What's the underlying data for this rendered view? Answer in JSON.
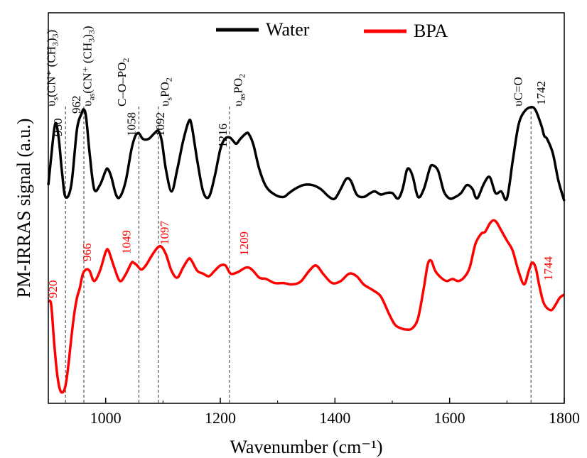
{
  "chart_data": {
    "type": "line",
    "title": "",
    "xlabel": "Wavenumber (cm⁻¹)",
    "ylabel": "PM-IRRAS signal (a.u.)",
    "xlim": [
      900,
      1800
    ],
    "x_ticks": [
      "1000",
      "1200",
      "1400",
      "1600",
      "1800"
    ],
    "x_tick_values": [
      1000,
      1200,
      1400,
      1600,
      1800
    ],
    "y_ticks": [],
    "grid": false,
    "legend_position": "top-center",
    "series": [
      {
        "name": "Water",
        "color": "#000000",
        "offset": "upper",
        "x": [
          900,
          905,
          912,
          918,
          924,
          930,
          940,
          950,
          958,
          962,
          966,
          972,
          980,
          990,
          1000,
          1004,
          1010,
          1018,
          1025,
          1035,
          1045,
          1052,
          1058,
          1065,
          1075,
          1085,
          1092,
          1098,
          1105,
          1115,
          1125,
          1135,
          1145,
          1150,
          1160,
          1170,
          1180,
          1190,
          1200,
          1208,
          1216,
          1222,
          1228,
          1235,
          1245,
          1250,
          1258,
          1268,
          1280,
          1295,
          1310,
          1320,
          1330,
          1345,
          1360,
          1375,
          1390,
          1400,
          1410,
          1420,
          1428,
          1438,
          1450,
          1462,
          1470,
          1480,
          1490,
          1500,
          1510,
          1518,
          1525,
          1530,
          1536,
          1545,
          1555,
          1565,
          1570,
          1580,
          1590,
          1600,
          1610,
          1620,
          1630,
          1640,
          1645,
          1650,
          1660,
          1670,
          1680,
          1690,
          1700,
          1710,
          1720,
          1730,
          1742,
          1750,
          1760,
          1765,
          1770,
          1780,
          1790,
          1800
        ],
        "y": [
          0.2,
          0.55,
          0.97,
          0.8,
          0.35,
          0.05,
          0.2,
          0.9,
          1.1,
          1.15,
          1.05,
          0.6,
          0.15,
          0.2,
          0.38,
          0.4,
          0.3,
          0.08,
          0.05,
          0.25,
          0.65,
          0.82,
          0.85,
          0.78,
          0.78,
          0.85,
          0.88,
          0.75,
          0.4,
          0.12,
          0.4,
          0.75,
          1.0,
          0.95,
          0.5,
          0.12,
          0.05,
          0.3,
          0.65,
          0.78,
          0.8,
          0.76,
          0.72,
          0.78,
          0.85,
          0.84,
          0.7,
          0.4,
          0.18,
          0.08,
          0.05,
          0.1,
          0.15,
          0.2,
          0.2,
          0.15,
          0.05,
          0.03,
          0.15,
          0.28,
          0.25,
          0.08,
          0.05,
          0.1,
          0.12,
          0.08,
          0.1,
          0.1,
          0.03,
          0.15,
          0.38,
          0.4,
          0.3,
          0.05,
          0.15,
          0.4,
          0.45,
          0.38,
          0.12,
          0.03,
          0.05,
          0.1,
          0.2,
          0.15,
          0.05,
          0.05,
          0.22,
          0.3,
          0.1,
          0.12,
          0.03,
          0.5,
          0.95,
          1.12,
          1.18,
          1.14,
          0.95,
          0.82,
          0.78,
          0.6,
          0.25,
          0.0
        ]
      },
      {
        "name": "BPA",
        "color": "#ff0000",
        "offset": "lower",
        "x": [
          900,
          905,
          910,
          915,
          920,
          925,
          930,
          935,
          940,
          945,
          950,
          955,
          960,
          966,
          972,
          980,
          990,
          1000,
          1005,
          1015,
          1025,
          1035,
          1045,
          1049,
          1055,
          1062,
          1070,
          1080,
          1090,
          1097,
          1105,
          1115,
          1125,
          1135,
          1145,
          1150,
          1160,
          1170,
          1180,
          1190,
          1200,
          1209,
          1218,
          1230,
          1245,
          1255,
          1268,
          1280,
          1295,
          1310,
          1325,
          1340,
          1355,
          1367,
          1380,
          1395,
          1410,
          1425,
          1438,
          1450,
          1465,
          1480,
          1495,
          1505,
          1515,
          1525,
          1535,
          1545,
          1555,
          1562,
          1568,
          1575,
          1585,
          1595,
          1605,
          1615,
          1625,
          1635,
          1645,
          1655,
          1662,
          1670,
          1676,
          1682,
          1690,
          1700,
          1710,
          1720,
          1730,
          1738,
          1744,
          1750,
          1756,
          1763,
          1770,
          1778,
          1785,
          1792,
          1800
        ],
        "y": [
          -0.15,
          -0.2,
          -0.75,
          -1.2,
          -1.45,
          -1.5,
          -1.4,
          -1.1,
          -0.7,
          -0.35,
          -0.1,
          0.05,
          0.25,
          0.32,
          0.3,
          0.15,
          0.3,
          0.58,
          0.6,
          0.35,
          0.15,
          0.25,
          0.42,
          0.42,
          0.38,
          0.32,
          0.38,
          0.52,
          0.64,
          0.66,
          0.55,
          0.3,
          0.2,
          0.35,
          0.48,
          0.45,
          0.3,
          0.26,
          0.22,
          0.3,
          0.38,
          0.38,
          0.26,
          0.28,
          0.35,
          0.32,
          0.2,
          0.18,
          0.12,
          0.12,
          0.1,
          0.14,
          0.3,
          0.38,
          0.25,
          0.12,
          0.15,
          0.26,
          0.22,
          0.1,
          0.02,
          -0.08,
          -0.35,
          -0.5,
          -0.55,
          -0.57,
          -0.55,
          -0.4,
          0.05,
          0.4,
          0.45,
          0.3,
          0.2,
          0.15,
          0.18,
          0.15,
          0.2,
          0.35,
          0.7,
          0.85,
          0.88,
          1.0,
          1.05,
          1.02,
          0.9,
          0.75,
          0.6,
          0.3,
          0.1,
          0.3,
          0.42,
          0.35,
          0.1,
          -0.15,
          -0.25,
          -0.28,
          -0.2,
          -0.1,
          -0.05
        ]
      }
    ],
    "reference_lines": [
      {
        "x": 930,
        "top_label": "930",
        "bottom_label": "920"
      },
      {
        "x": 962,
        "top_label": "962",
        "bottom_label": "966"
      },
      {
        "x": 1058,
        "top_label": "1058",
        "bottom_label": "1049"
      },
      {
        "x": 1092,
        "top_label": "1092",
        "bottom_label": "1097"
      },
      {
        "x": 1216,
        "top_label": "1216",
        "bottom_label": "1209"
      },
      {
        "x": 1742,
        "top_label": "1742",
        "bottom_label": "1744"
      }
    ],
    "band_annotations": [
      {
        "x": 912,
        "base": "υ",
        "sub": "s",
        "rest": "(CN⁺ (CH",
        "sub2": "3",
        "rest2": ")",
        "sub3": "3",
        "rest3": ")"
      },
      {
        "x": 975,
        "base": "υ",
        "sub": "as",
        "rest": "(CN⁺ (CH",
        "sub2": "3",
        "rest2": ")",
        "sub3": "3",
        "rest3": ")"
      },
      {
        "x": 1035,
        "base": "C–O–PO",
        "sub": "2",
        "rest": "",
        "sub2": "",
        "rest2": "",
        "sub3": "",
        "rest3": ""
      },
      {
        "x": 1110,
        "base": "υ",
        "sub": "s",
        "rest": "PO",
        "sub2": "2",
        "rest2": "",
        "sub3": "",
        "rest3": ""
      },
      {
        "x": 1238,
        "base": "υ",
        "sub": "as",
        "rest": "PO",
        "sub2": "2",
        "rest2": "",
        "sub3": "",
        "rest3": ""
      },
      {
        "x": 1726,
        "base": "υC=O",
        "sub": "",
        "rest": "",
        "sub2": "",
        "rest2": "",
        "sub3": "",
        "rest3": ""
      }
    ]
  }
}
